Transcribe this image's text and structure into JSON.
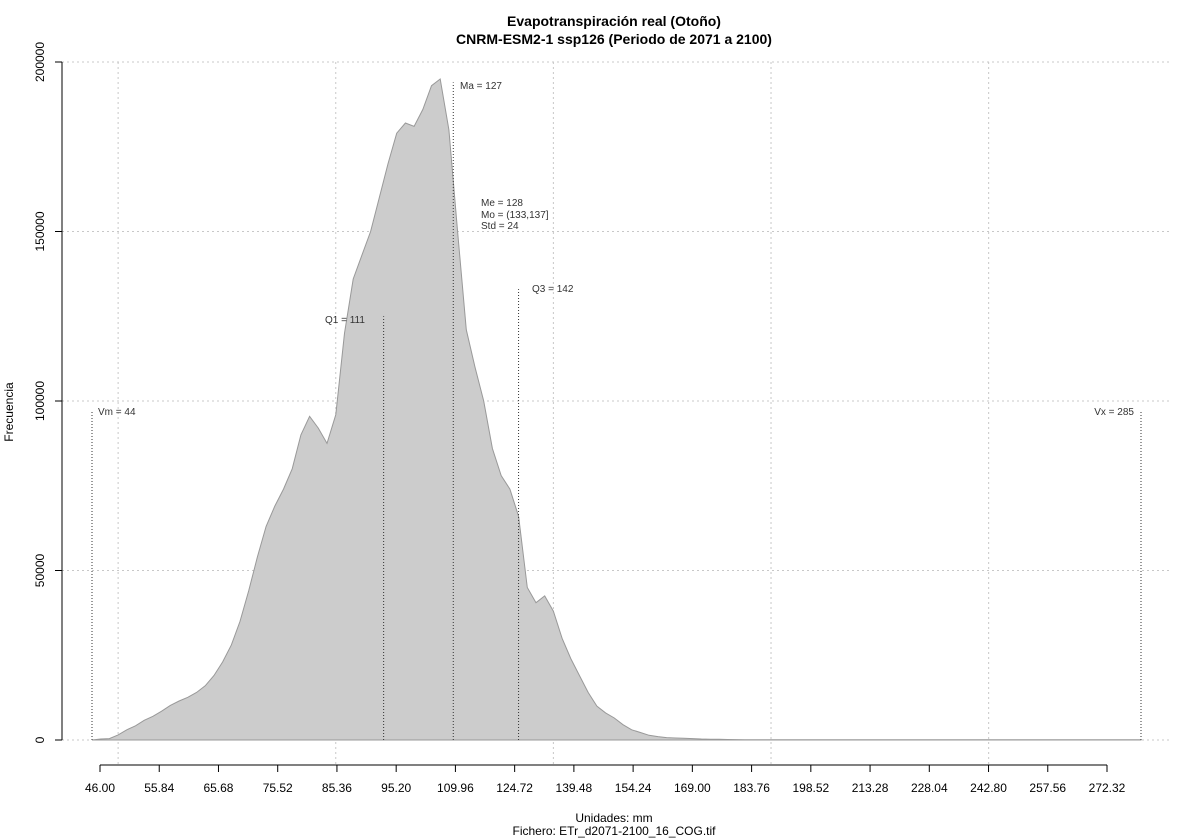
{
  "chart_data": {
    "type": "area",
    "title": "Evapotranspiración real (Otoño)",
    "subtitle": "CNRM-ESM2-1 ssp126 (Periodo de 2071 a 2100)",
    "xlabel": "Unidades: mm",
    "ylabel": "Frecuencia",
    "footer": "Fichero: ETr_d2071-2100_16_COG.tif",
    "xlim": [
      44,
      285
    ],
    "ylim": [
      0,
      200000
    ],
    "x_tick_labels": [
      "46.00",
      "55.84",
      "65.68",
      "75.52",
      "85.36",
      "95.20",
      "109.96",
      "124.72",
      "139.48",
      "154.24",
      "169.00",
      "183.76",
      "198.52",
      "213.28",
      "228.04",
      "242.80",
      "257.56",
      "272.32"
    ],
    "x_tick_values": [
      46.0,
      55.84,
      65.68,
      75.52,
      85.36,
      95.2,
      109.96,
      124.72,
      139.48,
      154.24,
      169.0,
      183.76,
      198.52,
      213.28,
      228.04,
      242.8,
      257.56,
      272.32
    ],
    "y_ticks": [
      0,
      50000,
      100000,
      150000,
      200000
    ],
    "y_tick_labels": [
      "0",
      "50000",
      "100000",
      "150000",
      "200000"
    ],
    "x_grid": [
      50,
      100,
      150,
      200,
      250
    ],
    "grid": true,
    "fill_color": "#cccccc",
    "stroke_color": "#999999",
    "x": [
      44,
      46,
      48,
      50,
      52,
      54,
      56,
      58,
      60,
      62,
      64,
      66,
      68,
      70,
      72,
      74,
      76,
      78,
      80,
      82,
      84,
      86,
      88,
      90,
      92,
      94,
      96,
      98,
      100,
      102,
      104,
      106,
      108,
      110,
      112,
      114,
      116,
      118,
      120,
      122,
      124,
      126,
      128,
      130,
      132,
      134,
      136,
      138,
      140,
      142,
      144,
      146,
      148,
      150,
      152,
      154,
      156,
      158,
      160,
      162,
      164,
      166,
      168,
      170,
      172,
      174,
      176,
      178,
      180,
      182,
      184,
      186,
      188,
      190,
      192,
      194,
      196,
      198,
      200,
      202,
      204,
      206,
      208,
      210,
      215,
      220,
      230,
      240,
      250,
      260,
      270,
      280,
      285
    ],
    "y": [
      0,
      300,
      400,
      1500,
      3000,
      4200,
      5800,
      7000,
      8500,
      10200,
      11500,
      12600,
      14000,
      16000,
      19000,
      23000,
      28000,
      35000,
      44000,
      54000,
      63000,
      69000,
      74000,
      80000,
      90000,
      95500,
      92000,
      87500,
      96000,
      120000,
      136000,
      143000,
      150000,
      160000,
      170000,
      179000,
      182000,
      181000,
      186000,
      193000,
      195000,
      180000,
      150000,
      121000,
      110000,
      100000,
      86000,
      78000,
      74000,
      66000,
      45000,
      40500,
      42500,
      38000,
      30000,
      24000,
      19000,
      14000,
      10000,
      8000,
      6500,
      4500,
      3000,
      2200,
      1400,
      1000,
      700,
      600,
      500,
      400,
      300,
      250,
      200,
      150,
      120,
      100,
      100,
      100,
      100,
      100,
      100,
      100,
      100,
      100,
      100,
      100,
      100,
      100,
      100,
      100,
      100,
      100,
      100
    ],
    "stats": {
      "ma": "Ma = 127",
      "me": "Me = 128",
      "mo": "Mo = (133,137]",
      "std": "Std = 24",
      "q1": "Q1 = 111",
      "q3": "Q3 = 142",
      "vm": "Vm = 44",
      "vx": "Vx = 285"
    },
    "stat_values": {
      "q1": 111,
      "ma": 127,
      "q3": 142,
      "vm": 44,
      "vx": 285
    },
    "stat_heights": {
      "q1": 125000,
      "ma": 194000,
      "q3": 133000,
      "vm": 97000,
      "vx": 97000
    }
  }
}
